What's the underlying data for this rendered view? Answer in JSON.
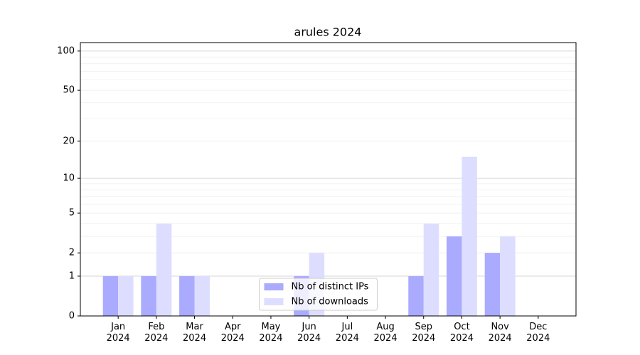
{
  "chart_data": {
    "type": "bar",
    "title": "arules 2024",
    "categories": [
      "Jan\n2024",
      "Feb\n2024",
      "Mar\n2024",
      "Apr\n2024",
      "May\n2024",
      "Jun\n2024",
      "Jul\n2024",
      "Aug\n2024",
      "Sep\n2024",
      "Oct\n2024",
      "Nov\n2024",
      "Dec\n2024"
    ],
    "series": [
      {
        "name": "Nb of distinct IPs",
        "color": "#aaaaff",
        "values": [
          1,
          1,
          1,
          0,
          0,
          1,
          0,
          0,
          1,
          3,
          2,
          0
        ]
      },
      {
        "name": "Nb of downloads",
        "color": "#ddddff",
        "values": [
          1,
          4,
          1,
          0,
          0,
          2,
          0,
          0,
          4,
          15,
          3,
          0
        ]
      }
    ],
    "yscale": "log1p",
    "ylim": [
      0,
      116
    ],
    "yticks": [
      0,
      1,
      2,
      5,
      10,
      20,
      50,
      100
    ],
    "minor_yticks": [
      3,
      4,
      6,
      7,
      8,
      9,
      30,
      40,
      60,
      70,
      80,
      90
    ],
    "grid": true,
    "legend": "lower center"
  }
}
